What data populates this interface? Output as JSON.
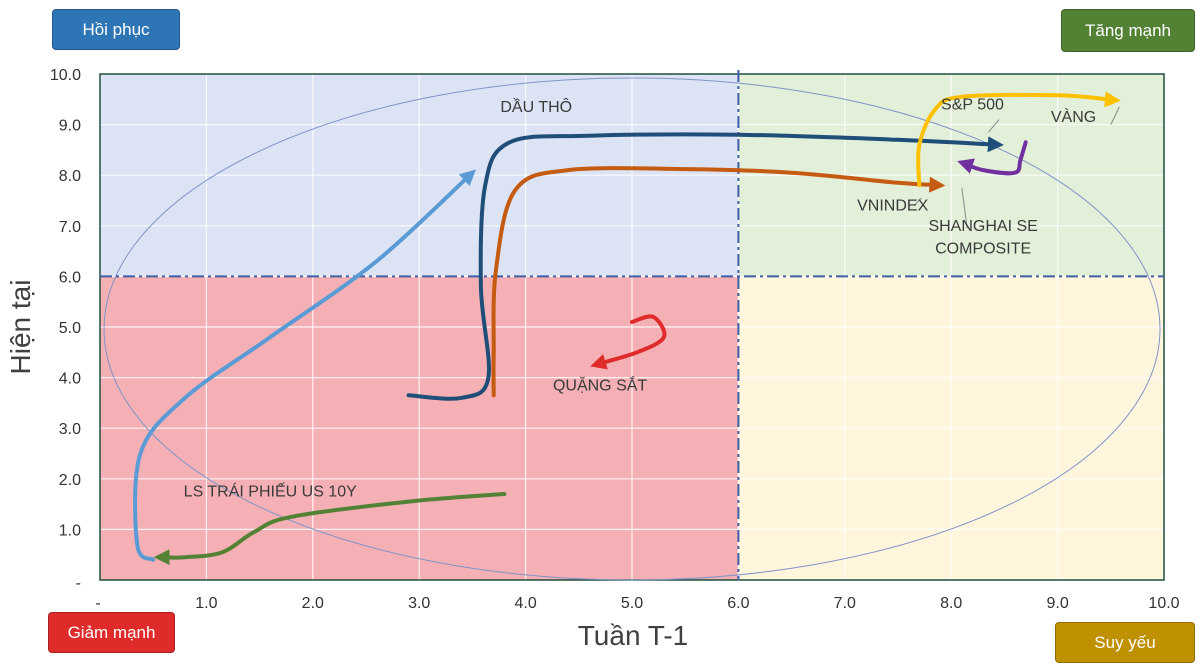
{
  "quadrant_labels": {
    "top_left": {
      "text": "Hồi phục",
      "color": "#2e75b6"
    },
    "top_right": {
      "text": "Tăng mạnh",
      "color": "#548235"
    },
    "bottom_left": {
      "text": "Giảm mạnh",
      "color": "#e02b2b"
    },
    "bottom_right": {
      "text": "Suy yếu",
      "color": "#bf9000"
    }
  },
  "chart_data": {
    "type": "line",
    "title": "",
    "xlabel": "Tuần T-1",
    "ylabel": "Hiện tại",
    "xlim": [
      0,
      10
    ],
    "ylim": [
      0,
      10
    ],
    "x_ticks": [
      "-",
      "1.0",
      "2.0",
      "3.0",
      "4.0",
      "5.0",
      "6.0",
      "7.0",
      "8.0",
      "9.0",
      "10.0"
    ],
    "y_ticks": [
      "-",
      "1.0",
      "2.0",
      "3.0",
      "4.0",
      "5.0",
      "6.0",
      "7.0",
      "8.0",
      "9.0",
      "10.0"
    ],
    "grid": true,
    "dividers": {
      "x": 6.0,
      "y": 6.0
    },
    "quadrant_fills": {
      "top_left": "#dce3f4",
      "top_right": "#e2efd9",
      "bottom_left": "#f4b0b4",
      "bottom_right": "#fff6dd"
    },
    "series": [
      {
        "name": "DẦU THÔ",
        "color": "#5b9bd5",
        "points": [
          [
            0.5,
            0.4
          ],
          [
            0.35,
            0.7
          ],
          [
            0.38,
            2.5
          ],
          [
            0.8,
            3.6
          ],
          [
            1.6,
            4.8
          ],
          [
            2.6,
            6.3
          ],
          [
            3.5,
            8.05
          ]
        ]
      },
      {
        "name": "S&P 500",
        "color": "#1f4e79",
        "points": [
          [
            2.9,
            3.65
          ],
          [
            3.4,
            3.6
          ],
          [
            3.65,
            4.0
          ],
          [
            3.58,
            5.8
          ],
          [
            3.62,
            7.8
          ],
          [
            3.85,
            8.65
          ],
          [
            4.6,
            8.78
          ],
          [
            6.0,
            8.8
          ],
          [
            7.5,
            8.7
          ],
          [
            8.45,
            8.6
          ]
        ]
      },
      {
        "name": "VNINDEX",
        "color": "#c55a11",
        "points": [
          [
            3.7,
            3.65
          ],
          [
            3.7,
            4.5
          ],
          [
            3.72,
            6.1
          ],
          [
            3.9,
            7.7
          ],
          [
            4.4,
            8.1
          ],
          [
            5.5,
            8.12
          ],
          [
            6.5,
            8.05
          ],
          [
            7.5,
            7.85
          ],
          [
            7.9,
            7.8
          ]
        ]
      },
      {
        "name": "VÀNG",
        "color": "#ffc000",
        "points": [
          [
            7.7,
            7.8
          ],
          [
            7.7,
            8.6
          ],
          [
            7.85,
            9.3
          ],
          [
            8.1,
            9.55
          ],
          [
            9.0,
            9.58
          ],
          [
            9.55,
            9.48
          ]
        ]
      },
      {
        "name": "SHANGHAI SE COMPOSITE",
        "color": "#7030a0",
        "points": [
          [
            8.7,
            8.65
          ],
          [
            8.65,
            8.3
          ],
          [
            8.6,
            8.05
          ],
          [
            8.3,
            8.1
          ],
          [
            8.1,
            8.25
          ]
        ]
      },
      {
        "name": "QUẶNG SẮT",
        "color": "#e02b2b",
        "points": [
          [
            5.0,
            5.1
          ],
          [
            5.2,
            5.2
          ],
          [
            5.3,
            4.8
          ],
          [
            5.05,
            4.5
          ],
          [
            4.65,
            4.25
          ]
        ]
      },
      {
        "name": "LS TRÁI PHIẾU US 10Y",
        "color": "#548235",
        "points": [
          [
            3.8,
            1.7
          ],
          [
            2.9,
            1.55
          ],
          [
            1.8,
            1.25
          ],
          [
            1.45,
            0.95
          ],
          [
            1.15,
            0.55
          ],
          [
            0.8,
            0.45
          ],
          [
            0.55,
            0.45
          ]
        ]
      }
    ],
    "annotations": [
      {
        "text": "DẦU THÔ",
        "x": 4.1,
        "y": 9.25
      },
      {
        "text": "S&P 500",
        "x": 8.2,
        "y": 9.3
      },
      {
        "text": "VÀNG",
        "x": 9.15,
        "y": 9.05
      },
      {
        "text": "VNINDEX",
        "x": 7.45,
        "y": 7.3
      },
      {
        "text": "SHANGHAI SE",
        "x": 8.3,
        "y": 6.9
      },
      {
        "text": "COMPOSITE",
        "x": 8.3,
        "y": 6.45
      },
      {
        "text": "QUẶNG SẮT",
        "x": 4.7,
        "y": 3.75
      },
      {
        "text": "LS TRÁI PHIẾU US 10Y",
        "x": 1.6,
        "y": 1.65
      }
    ]
  }
}
